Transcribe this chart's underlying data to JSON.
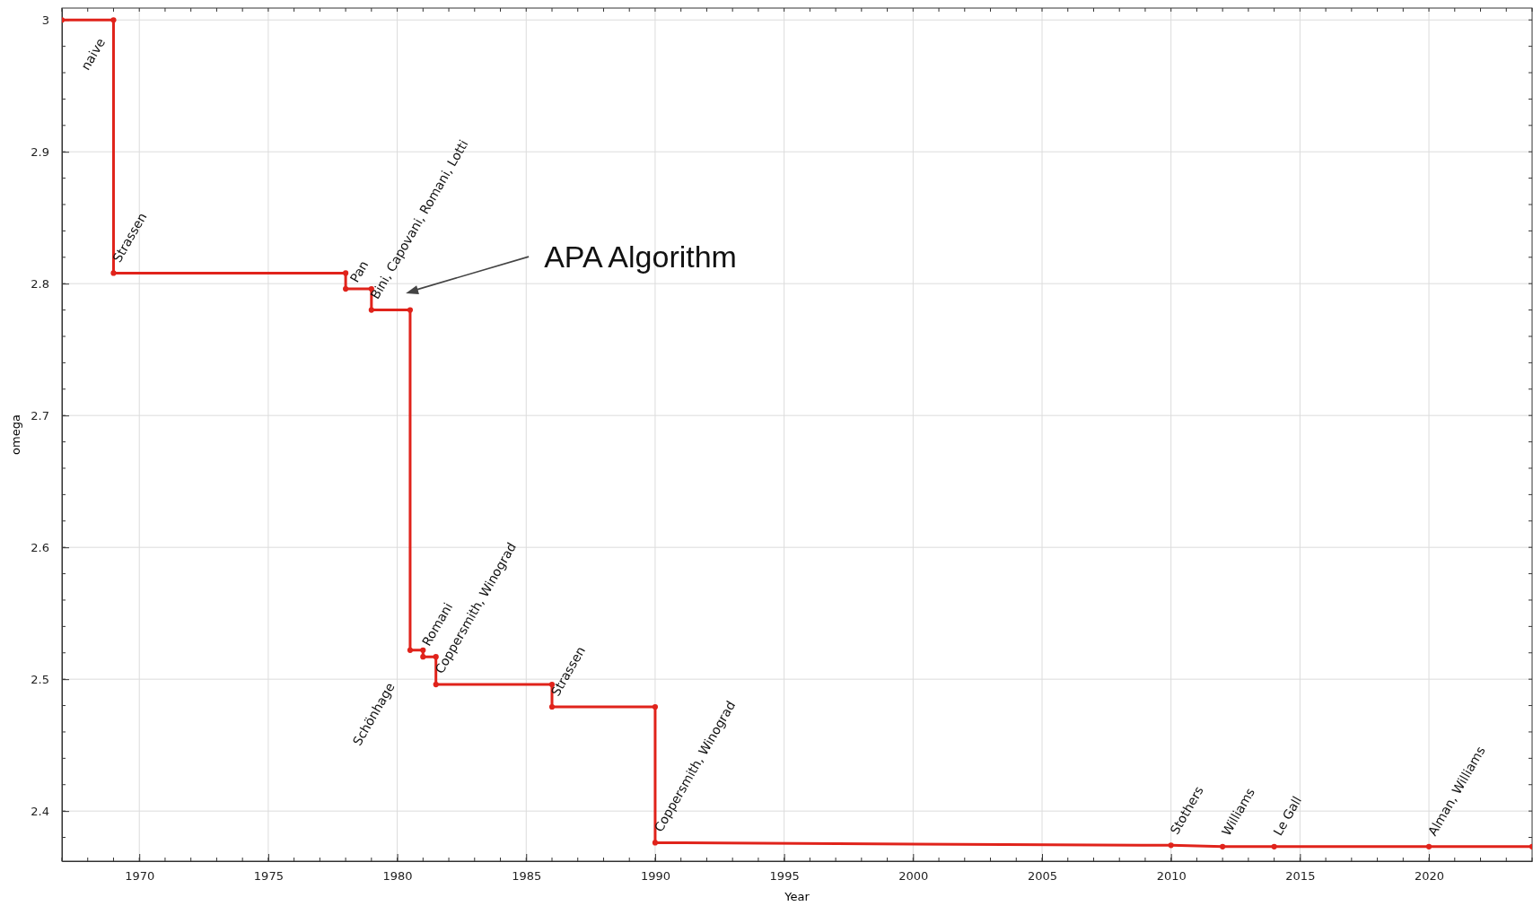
{
  "chart_data": {
    "type": "line",
    "xlabel": "Year",
    "ylabel": "omega",
    "x": [
      1967,
      1969,
      1969,
      1978,
      1978,
      1979,
      1979,
      1980.5,
      1980.5,
      1981,
      1981,
      1981.5,
      1981.5,
      1986,
      1986,
      1990,
      1990,
      2010,
      2012,
      2014,
      2020,
      2024
    ],
    "series": [
      {
        "color": "#e0231b",
        "values": [
          3,
          3,
          2.808,
          2.808,
          2.796,
          2.796,
          2.78,
          2.78,
          2.522,
          2.522,
          2.517,
          2.517,
          2.496,
          2.496,
          2.479,
          2.479,
          2.376,
          2.374,
          2.373,
          2.373,
          2.373,
          2.373
        ]
      }
    ],
    "xlim": [
      1967,
      2024
    ],
    "ylim": [
      2.362,
      3.009
    ],
    "xticks": [
      1970,
      1975,
      1980,
      1985,
      1990,
      1995,
      2000,
      2005,
      2010,
      2015,
      2020
    ],
    "yticks": [
      2.4,
      2.5,
      2.6,
      2.7,
      2.8,
      2.9,
      3
    ],
    "grid": true,
    "marker": "circle",
    "line_style": "solid",
    "annotations": [
      {
        "text": "naive",
        "x": 1969,
        "y": 3
      },
      {
        "text": "Strassen",
        "x": 1969,
        "y": 2.808
      },
      {
        "text": "Pan",
        "x": 1978,
        "y": 2.796
      },
      {
        "text": "Bini, Capovani, Romani, Lotti",
        "x": 1979,
        "y": 2.78
      },
      {
        "text": "Schönhage",
        "x": 1980.5,
        "y": 2.522
      },
      {
        "text": "Romani",
        "x": 1981,
        "y": 2.517
      },
      {
        "text": "Coppersmith, Winograd",
        "x": 1981.5,
        "y": 2.496
      },
      {
        "text": "Strassen",
        "x": 1986,
        "y": 2.479
      },
      {
        "text": "Coppersmith, Winograd",
        "x": 1990,
        "y": 2.376
      },
      {
        "text": "Stothers",
        "x": 2010,
        "y": 2.374
      },
      {
        "text": "Williams",
        "x": 2012,
        "y": 2.373
      },
      {
        "text": "Le Gall",
        "x": 2014,
        "y": 2.373
      },
      {
        "text": "Alman, Williams",
        "x": 2020,
        "y": 2.373
      },
      "APA Algorithm"
    ]
  }
}
